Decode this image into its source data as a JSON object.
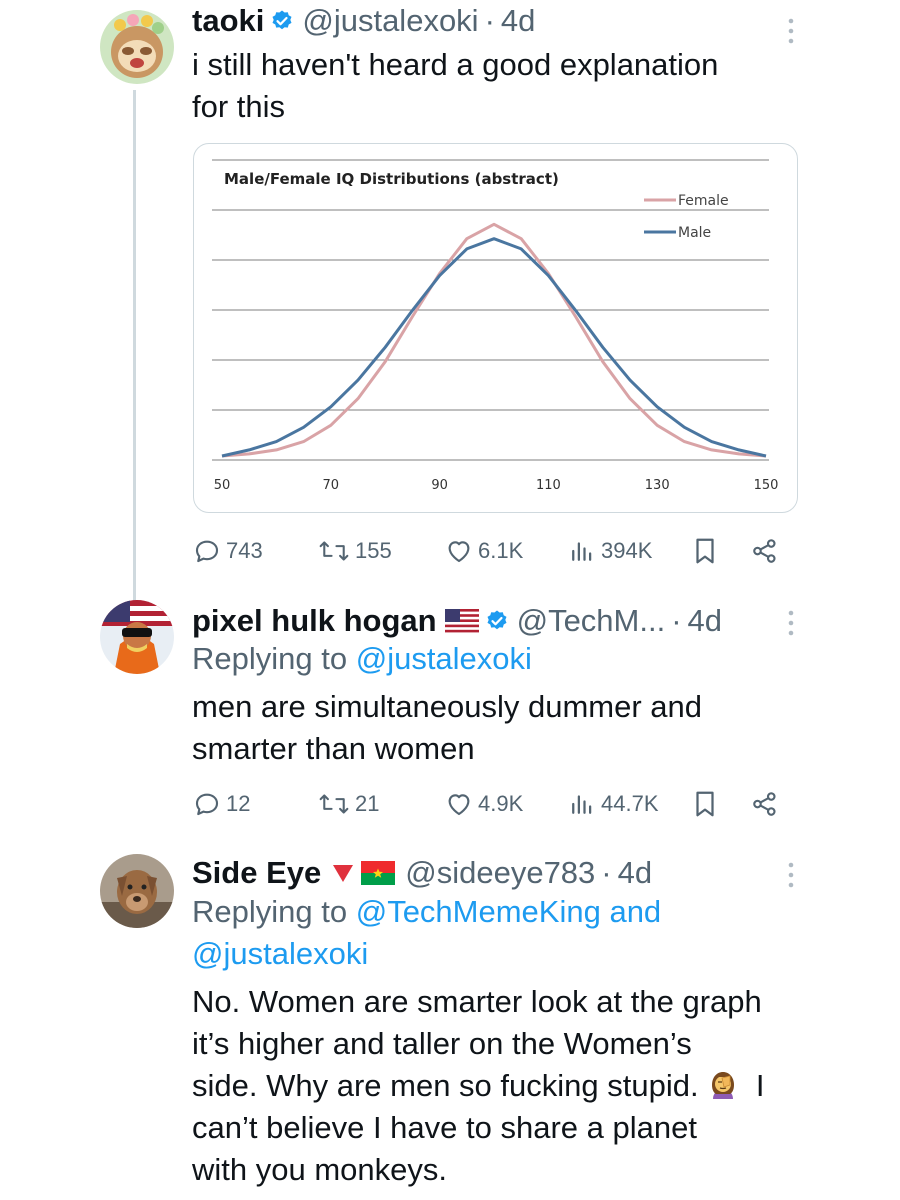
{
  "tweets": [
    {
      "name": "taoki",
      "handle": "@justalexoki",
      "time": "4d",
      "text_lines": [
        "i still haven't heard a good explanation",
        "for this"
      ],
      "stats": {
        "replies": "743",
        "reposts": "155",
        "likes": "6.1K",
        "views": "394K"
      }
    },
    {
      "name": "pixel hulk hogan",
      "handle": "@TechM...",
      "time": "4d",
      "replying_prefix": "Replying to ",
      "replying_to": "@justalexoki",
      "text_lines": [
        "men are simultaneously dummer and",
        "smarter than women"
      ],
      "stats": {
        "replies": "12",
        "reposts": "21",
        "likes": "4.9K",
        "views": "44.7K"
      }
    },
    {
      "name": "Side Eye",
      "handle": "@sideeye783",
      "time": "4d",
      "replying_prefix": "Replying to ",
      "replying_to_line1": "@TechMemeKing and",
      "replying_to_line2": "@justalexoki",
      "text_lines": [
        "No. Women are smarter look at the graph",
        "it’s higher and taller on the Women’s",
        "side. Why are men so fucking stupid.",
        "I",
        "can’t believe I have to share a planet",
        "with you monkeys."
      ]
    }
  ],
  "chart_data": {
    "type": "line",
    "title": "Male/Female IQ Distributions (abstract)",
    "x_ticks": [
      "50",
      "70",
      "90",
      "110",
      "130",
      "150"
    ],
    "xlim": [
      50,
      150
    ],
    "ylim": [
      0,
      1.2
    ],
    "grid": true,
    "legend_position": "top-right",
    "series": [
      {
        "name": "Female",
        "color": "#d9a3a6",
        "x": [
          50,
          55,
          60,
          65,
          70,
          75,
          80,
          85,
          90,
          95,
          100,
          105,
          110,
          115,
          120,
          125,
          130,
          135,
          140,
          145,
          150
        ],
        "y": [
          0.0,
          0.01,
          0.03,
          0.07,
          0.15,
          0.28,
          0.46,
          0.68,
          0.89,
          1.06,
          1.13,
          1.06,
          0.89,
          0.68,
          0.46,
          0.28,
          0.15,
          0.07,
          0.03,
          0.01,
          0.0
        ]
      },
      {
        "name": "Male",
        "color": "#4a76a0",
        "x": [
          50,
          55,
          60,
          65,
          70,
          75,
          80,
          85,
          90,
          95,
          100,
          105,
          110,
          115,
          120,
          125,
          130,
          135,
          140,
          145,
          150
        ],
        "y": [
          0.0,
          0.03,
          0.07,
          0.14,
          0.24,
          0.37,
          0.53,
          0.71,
          0.88,
          1.01,
          1.06,
          1.01,
          0.88,
          0.71,
          0.53,
          0.37,
          0.24,
          0.14,
          0.07,
          0.03,
          0.0
        ]
      }
    ]
  }
}
